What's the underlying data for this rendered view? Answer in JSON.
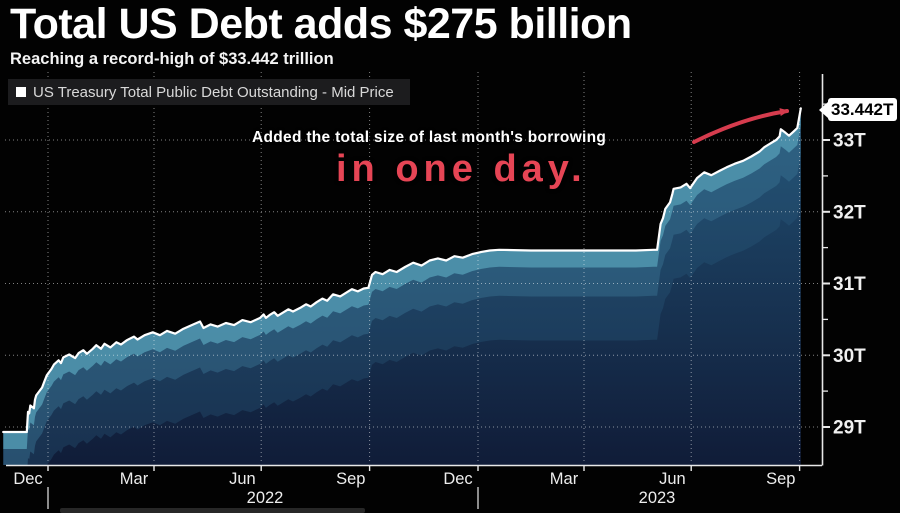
{
  "header": {
    "title": "Total US Debt adds $275 billion",
    "subtitle": "Reaching a record-high of $33.442 trillion"
  },
  "legend": {
    "marker_icon": "white-square",
    "label": "US Treasury Total Public Debt Outstanding - Mid Price"
  },
  "annotations": {
    "line1": "Added the total size of last month's borrowing",
    "line2": "in one day."
  },
  "callout": {
    "text": "33.442T"
  },
  "colors": {
    "background": "#020202",
    "line": "#ffffff",
    "annotation_red": "#e8terminate",
    "accent_red": "#e64555",
    "arrow_red": "#d63c4e",
    "area_base_top": "#215073",
    "area_base_bottom": "#101c38",
    "band_near_line": "#4f93ad",
    "band_mid": "#37708f",
    "band_far": "#2a5d7f",
    "grid": "#ffffff",
    "axis": "#e8e8e8",
    "tick_label": "#f0f0f0",
    "year_separator": "#c8c8c8",
    "progress_bar": "#2e2e2e"
  },
  "chart_data": {
    "type": "area",
    "title": "US Treasury Total Public Debt Outstanding - Mid Price",
    "unit": "trillions of USD",
    "last_value": 33.442,
    "last_value_label": "33.442T",
    "grid": true,
    "legend_position": "top-left",
    "y_axis": {
      "side": "right",
      "min": 28.5,
      "max": 33.7,
      "major_ticks": [
        29,
        30,
        31,
        32,
        33
      ],
      "major_tick_labels": [
        "29T",
        "30T",
        "31T",
        "32T",
        "33T"
      ],
      "minor_ticks": [
        29.5,
        30.5,
        31.5,
        32.5,
        33.5
      ]
    },
    "x_axis": {
      "start": "2021-11-24",
      "end": "2023-10-02",
      "quarter_gridlines": [
        "2022-01-01",
        "2022-04-01",
        "2022-07-01",
        "2022-10-01",
        "2023-01-01",
        "2023-04-01",
        "2023-07-01",
        "2023-10-01"
      ],
      "month_labels": [
        {
          "label": "Dec",
          "date": "2021-12-15"
        },
        {
          "label": "Mar",
          "date": "2022-03-15"
        },
        {
          "label": "Jun",
          "date": "2022-06-15"
        },
        {
          "label": "Sep",
          "date": "2022-09-15"
        },
        {
          "label": "Dec",
          "date": "2022-12-15"
        },
        {
          "label": "Mar",
          "date": "2023-03-15"
        },
        {
          "label": "Jun",
          "date": "2023-06-15"
        },
        {
          "label": "Sep",
          "date": "2023-09-15"
        }
      ],
      "year_labels": [
        {
          "label": "2022",
          "anchor_date": "2022-07-01"
        },
        {
          "label": "2023",
          "anchor_date": "2023-06-01"
        }
      ],
      "year_separators": [
        "2022-01-01",
        "2023-01-01"
      ]
    },
    "series": [
      {
        "name": "US Treasury Total Public Debt Outstanding - Mid Price",
        "points": [
          [
            "2021-11-24",
            28.93
          ],
          [
            "2021-12-14",
            28.93
          ],
          [
            "2021-12-15",
            29.21
          ],
          [
            "2021-12-16",
            29.19
          ],
          [
            "2021-12-17",
            29.3
          ],
          [
            "2021-12-20",
            29.26
          ],
          [
            "2021-12-21",
            29.38
          ],
          [
            "2021-12-22",
            29.44
          ],
          [
            "2021-12-27",
            29.55
          ],
          [
            "2021-12-29",
            29.64
          ],
          [
            "2021-12-31",
            29.72
          ],
          [
            "2022-01-04",
            29.81
          ],
          [
            "2022-01-06",
            29.87
          ],
          [
            "2022-01-10",
            29.93
          ],
          [
            "2022-01-12",
            29.89
          ],
          [
            "2022-01-14",
            29.97
          ],
          [
            "2022-01-19",
            30.01
          ],
          [
            "2022-01-24",
            29.96
          ],
          [
            "2022-01-27",
            30.03
          ],
          [
            "2022-01-31",
            30.07
          ],
          [
            "2022-02-03",
            30.02
          ],
          [
            "2022-02-08",
            30.09
          ],
          [
            "2022-02-11",
            30.14
          ],
          [
            "2022-02-15",
            30.09
          ],
          [
            "2022-02-18",
            30.16
          ],
          [
            "2022-02-23",
            30.11
          ],
          [
            "2022-02-28",
            30.18
          ],
          [
            "2022-03-04",
            30.15
          ],
          [
            "2022-03-09",
            30.21
          ],
          [
            "2022-03-15",
            30.26
          ],
          [
            "2022-03-18",
            30.22
          ],
          [
            "2022-03-24",
            30.28
          ],
          [
            "2022-03-31",
            30.32
          ],
          [
            "2022-04-06",
            30.28
          ],
          [
            "2022-04-12",
            30.34
          ],
          [
            "2022-04-19",
            30.3
          ],
          [
            "2022-04-26",
            30.37
          ],
          [
            "2022-05-03",
            30.42
          ],
          [
            "2022-05-10",
            30.47
          ],
          [
            "2022-05-13",
            30.38
          ],
          [
            "2022-05-19",
            30.43
          ],
          [
            "2022-05-25",
            30.4
          ],
          [
            "2022-06-01",
            30.45
          ],
          [
            "2022-06-08",
            30.42
          ],
          [
            "2022-06-15",
            30.49
          ],
          [
            "2022-06-22",
            30.46
          ],
          [
            "2022-06-30",
            30.52
          ],
          [
            "2022-07-03",
            30.57
          ],
          [
            "2022-07-05",
            30.52
          ],
          [
            "2022-07-08",
            30.56
          ],
          [
            "2022-07-12",
            30.6
          ],
          [
            "2022-07-15",
            30.55
          ],
          [
            "2022-07-19",
            30.59
          ],
          [
            "2022-07-24",
            30.64
          ],
          [
            "2022-07-28",
            30.61
          ],
          [
            "2022-08-03",
            30.66
          ],
          [
            "2022-08-08",
            30.71
          ],
          [
            "2022-08-12",
            30.68
          ],
          [
            "2022-08-17",
            30.74
          ],
          [
            "2022-08-22",
            30.79
          ],
          [
            "2022-08-26",
            30.76
          ],
          [
            "2022-08-31",
            30.85
          ],
          [
            "2022-09-06",
            30.82
          ],
          [
            "2022-09-12",
            30.88
          ],
          [
            "2022-09-16",
            30.92
          ],
          [
            "2022-09-21",
            30.89
          ],
          [
            "2022-09-26",
            30.93
          ],
          [
            "2022-09-30",
            30.94
          ],
          [
            "2022-10-03",
            31.12
          ],
          [
            "2022-10-06",
            31.16
          ],
          [
            "2022-10-12",
            31.13
          ],
          [
            "2022-10-18",
            31.19
          ],
          [
            "2022-10-24",
            31.16
          ],
          [
            "2022-10-31",
            31.23
          ],
          [
            "2022-11-07",
            31.29
          ],
          [
            "2022-11-14",
            31.25
          ],
          [
            "2022-11-21",
            31.32
          ],
          [
            "2022-11-28",
            31.35
          ],
          [
            "2022-12-05",
            31.32
          ],
          [
            "2022-12-12",
            31.38
          ],
          [
            "2022-12-19",
            31.36
          ],
          [
            "2022-12-27",
            31.41
          ],
          [
            "2023-01-04",
            31.44
          ],
          [
            "2023-01-11",
            31.46
          ],
          [
            "2023-01-19",
            31.47
          ],
          [
            "2023-02-15",
            31.46
          ],
          [
            "2023-03-15",
            31.46
          ],
          [
            "2023-04-14",
            31.46
          ],
          [
            "2023-05-15",
            31.46
          ],
          [
            "2023-05-30",
            31.47
          ],
          [
            "2023-06-02",
            31.47
          ],
          [
            "2023-06-05",
            31.83
          ],
          [
            "2023-06-07",
            31.91
          ],
          [
            "2023-06-09",
            32.04
          ],
          [
            "2023-06-13",
            32.13
          ],
          [
            "2023-06-15",
            32.25
          ],
          [
            "2023-06-16",
            32.32
          ],
          [
            "2023-06-22",
            32.34
          ],
          [
            "2023-06-27",
            32.39
          ],
          [
            "2023-06-30",
            32.33
          ],
          [
            "2023-07-06",
            32.47
          ],
          [
            "2023-07-12",
            32.55
          ],
          [
            "2023-07-18",
            32.51
          ],
          [
            "2023-07-25",
            32.57
          ],
          [
            "2023-07-31",
            32.62
          ],
          [
            "2023-08-07",
            32.67
          ],
          [
            "2023-08-14",
            32.71
          ],
          [
            "2023-08-21",
            32.77
          ],
          [
            "2023-08-28",
            32.84
          ],
          [
            "2023-09-01",
            32.9
          ],
          [
            "2023-09-06",
            32.95
          ],
          [
            "2023-09-11",
            33.0
          ],
          [
            "2023-09-14",
            33.05
          ],
          [
            "2023-09-15",
            33.15
          ],
          [
            "2023-09-19",
            33.1
          ],
          [
            "2023-09-22",
            33.06
          ],
          [
            "2023-09-26",
            33.12
          ],
          [
            "2023-09-29",
            33.167
          ],
          [
            "2023-10-02",
            33.442
          ]
        ]
      }
    ]
  }
}
